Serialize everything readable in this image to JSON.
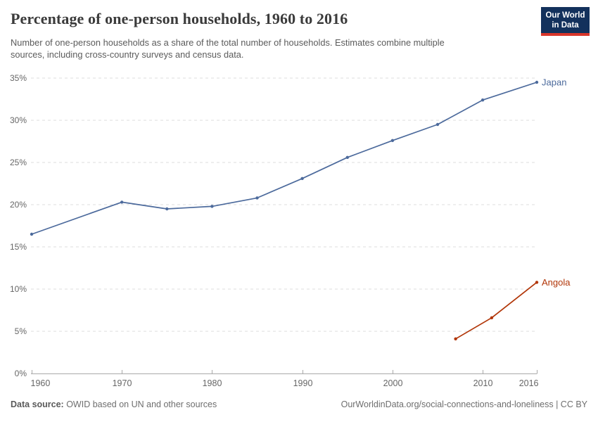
{
  "header": {
    "title": "Percentage of one-person households, 1960 to 2016",
    "subtitle_line1": "Number of one-person households as a share of the total number of households. Estimates combine multiple",
    "subtitle_line2": "sources, including cross-country surveys and census data.",
    "logo": {
      "line1": "Our World",
      "line2": "in Data",
      "bg_color": "#13315c",
      "bar_color": "#d8352a"
    }
  },
  "chart_data": {
    "type": "line",
    "title": "Percentage of one-person households, 1960 to 2016",
    "xlabel": "",
    "ylabel": "",
    "xlim": [
      1960,
      2016
    ],
    "ylim": [
      0,
      35
    ],
    "x_ticks": [
      1960,
      1970,
      1980,
      1990,
      2000,
      2010,
      2016
    ],
    "y_ticks": [
      0,
      5,
      10,
      15,
      20,
      25,
      30,
      35
    ],
    "y_tick_suffix": "%",
    "grid": "horizontal-dashed",
    "legend_position": "end-of-line-labels",
    "colors": {
      "grid": "#dcdcdc",
      "axis": "#a9a9a9",
      "tick_label": "#666666"
    },
    "series": [
      {
        "name": "Japan",
        "color": "#4C6A9C",
        "points": [
          [
            1960,
            16.5
          ],
          [
            1970,
            20.3
          ],
          [
            1975,
            19.5
          ],
          [
            1980,
            19.8
          ],
          [
            1985,
            20.8
          ],
          [
            1990,
            23.1
          ],
          [
            1995,
            25.6
          ],
          [
            2000,
            27.6
          ],
          [
            2005,
            29.5
          ],
          [
            2010,
            32.4
          ],
          [
            2016,
            34.5
          ]
        ]
      },
      {
        "name": "Angola",
        "color": "#B13507",
        "points": [
          [
            2007,
            4.1
          ],
          [
            2011,
            6.6
          ],
          [
            2016,
            10.8
          ]
        ]
      }
    ]
  },
  "footer": {
    "source_label": "Data source:",
    "source_text": " OWID based on UN and other sources",
    "link_text": "OurWorldinData.org/social-connections-and-loneliness | CC BY"
  }
}
